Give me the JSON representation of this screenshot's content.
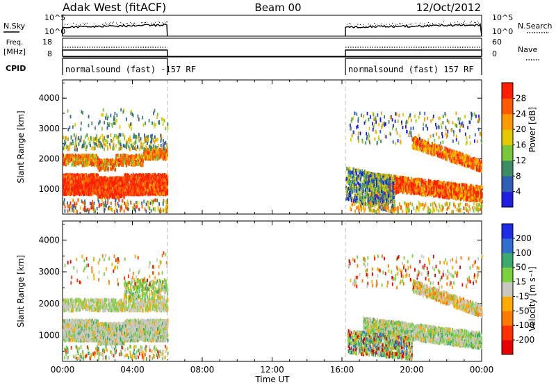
{
  "chart_data": [
    {
      "type": "line",
      "name": "noise-panel",
      "title": "Adak West (fitACF)",
      "subtitle": "Beam 00",
      "date": "12/Oct/2012",
      "left_label": "N.Sky",
      "right_label": "N.Search",
      "ylabels_left": [
        "10^5",
        "10^0"
      ],
      "ylabels_right": [
        "10^5",
        "10^0"
      ]
    },
    {
      "type": "line",
      "name": "freq-panel",
      "left_label_top": "Freq.",
      "left_label_unit": "[MHz]",
      "left_ticks": [
        "18",
        "8"
      ],
      "right_label": "Nave",
      "right_ticks": [
        "60",
        "0"
      ]
    },
    {
      "type": "table",
      "name": "cpid-panel",
      "label": "CPID",
      "segments": [
        {
          "text": "normalsound (fast) -157 RF",
          "start_hour": 0.0,
          "end_hour": 6.0
        },
        {
          "text": "normalsound (fast) 157 RF",
          "start_hour": 16.2,
          "end_hour": 24.0
        }
      ]
    },
    {
      "type": "heatmap",
      "name": "power-panel",
      "ylabel": "Slant Range [km]",
      "ylim": [
        180,
        4600
      ],
      "yticks": [
        "1000",
        "2000",
        "3000",
        "4000"
      ],
      "colorbar_label": "Power [dB]",
      "colorbar_ticks": [
        "4",
        "8",
        "12",
        "16",
        "20",
        "24",
        "28"
      ],
      "colorbar_range": [
        0,
        32
      ],
      "colors": [
        "#1f1fe0",
        "#2f5fb4",
        "#3c8c64",
        "#78c83c",
        "#e6c800",
        "#ff9900",
        "#ff5a00",
        "#ff1e00"
      ],
      "data_hours": [
        [
          0.0,
          6.0
        ],
        [
          16.2,
          24.0
        ]
      ]
    },
    {
      "type": "heatmap",
      "name": "velocity-panel",
      "ylabel": "Slant Range [km]",
      "ylim": [
        180,
        4600
      ],
      "yticks": [
        "1000",
        "2000",
        "3000",
        "4000"
      ],
      "colorbar_label": "Velocity [m s⁻¹]",
      "colorbar_ticks": [
        "200",
        "100",
        "50",
        "15",
        "-15",
        "-50",
        "-100",
        "-200"
      ],
      "colors": [
        "#1e2ee6",
        "#2e6fd0",
        "#3caa6e",
        "#7ad23c",
        "#c8c8be",
        "#ffaa00",
        "#ff7800",
        "#ff3000",
        "#e60000"
      ],
      "xlabel": "Time UT",
      "xticks": [
        "00:00",
        "04:00",
        "08:00",
        "12:00",
        "16:00",
        "20:00",
        "00:00"
      ],
      "xlim_hours": [
        0,
        24
      ]
    }
  ]
}
